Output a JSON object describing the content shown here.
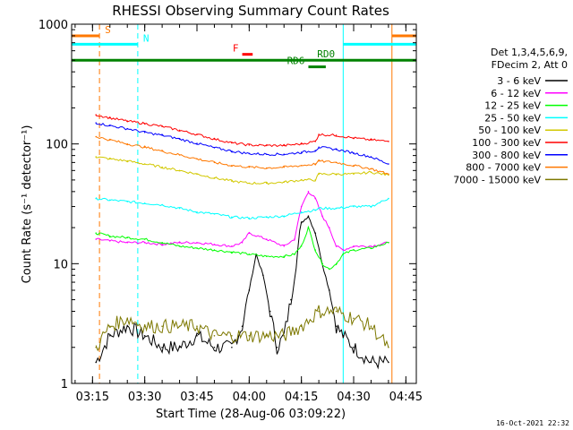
{
  "chart_data": {
    "type": "line",
    "title": "RHESSI Observing Summary Count Rates",
    "xlabel": "Start Time (28-Aug-06 03:09:22)",
    "ylabel": "Count Rate (s⁻¹ detector⁻¹)",
    "y_scale": "log",
    "ylim": [
      1,
      1000
    ],
    "xlim": [
      "03:09",
      "04:48"
    ],
    "x_ticks": [
      "03:15",
      "03:30",
      "03:45",
      "04:00",
      "04:15",
      "04:30",
      "04:45"
    ],
    "y_ticks": [
      "1",
      "10",
      "100",
      "1000"
    ],
    "legend": {
      "position": "right",
      "header": [
        "Det 1,3,4,5,6,9,",
        "FDecim 2, Att 0"
      ]
    },
    "series": [
      {
        "name": "3 - 6 keV",
        "color": "#000000",
        "x": [
          "03:16",
          "03:20",
          "03:25",
          "03:30",
          "03:35",
          "03:40",
          "03:45",
          "03:50",
          "03:55",
          "03:58",
          "04:00",
          "04:02",
          "04:04",
          "04:06",
          "04:08",
          "04:10",
          "04:12",
          "04:15",
          "04:17",
          "04:19",
          "04:21",
          "04:23",
          "04:25",
          "04:27",
          "04:30",
          "04:35",
          "04:40"
        ],
        "y": [
          1.5,
          2.5,
          3,
          2.5,
          2,
          2,
          2.5,
          2,
          2,
          3,
          6,
          12,
          8,
          4,
          2,
          2.5,
          5,
          22,
          25,
          18,
          10,
          6,
          3,
          2.5,
          2,
          1.5,
          1.5
        ]
      },
      {
        "name": "6 - 12 keV",
        "color": "#ff00ff",
        "x": [
          "03:16",
          "03:20",
          "03:25",
          "03:30",
          "03:35",
          "03:40",
          "03:45",
          "03:50",
          "03:55",
          "03:58",
          "04:00",
          "04:05",
          "04:10",
          "04:13",
          "04:15",
          "04:17",
          "04:19",
          "04:21",
          "04:23",
          "04:25",
          "04:27",
          "04:30",
          "04:35",
          "04:40"
        ],
        "y": [
          16,
          15.5,
          15,
          15,
          14.5,
          15,
          15,
          14.5,
          14,
          15,
          18,
          16,
          14,
          16,
          30,
          40,
          35,
          25,
          20,
          14,
          13,
          14,
          14,
          15
        ]
      },
      {
        "name": "12 - 25 keV",
        "color": "#00ff00",
        "x": [
          "03:16",
          "03:20",
          "03:25",
          "03:30",
          "03:35",
          "03:40",
          "03:45",
          "03:50",
          "03:55",
          "04:00",
          "04:05",
          "04:10",
          "04:13",
          "04:15",
          "04:17",
          "04:19",
          "04:21",
          "04:23",
          "04:25",
          "04:27",
          "04:30",
          "04:35",
          "04:40"
        ],
        "y": [
          18,
          17,
          16.5,
          16,
          15,
          14,
          13.5,
          13,
          12.5,
          12,
          11.5,
          11.5,
          12,
          14,
          20,
          13,
          10,
          9,
          10,
          12,
          13,
          13.5,
          15
        ]
      },
      {
        "name": "25 - 50 keV",
        "color": "#00ffff",
        "x": [
          "03:16",
          "03:20",
          "03:25",
          "03:30",
          "03:35",
          "03:40",
          "03:45",
          "03:50",
          "03:55",
          "04:00",
          "04:05",
          "04:10",
          "04:15",
          "04:19",
          "04:20",
          "04:25",
          "04:30",
          "04:35",
          "04:40"
        ],
        "y": [
          35,
          34,
          33,
          32,
          31,
          29,
          27,
          26,
          24.5,
          24,
          24.5,
          25,
          27,
          28,
          29,
          29,
          30,
          30,
          35
        ]
      },
      {
        "name": "50 - 100 keV",
        "color": "#d2c800",
        "x": [
          "03:16",
          "03:20",
          "03:25",
          "03:30",
          "03:35",
          "03:40",
          "03:45",
          "03:50",
          "03:55",
          "04:00",
          "04:05",
          "04:10",
          "04:15",
          "04:19",
          "04:20",
          "04:25",
          "04:30",
          "04:35",
          "04:40"
        ],
        "y": [
          78,
          75,
          72,
          68,
          64,
          60,
          56,
          52,
          49,
          47,
          47,
          48,
          50,
          50,
          56,
          56,
          56,
          58,
          55
        ]
      },
      {
        "name": "100 - 300 keV",
        "color": "#ff0000",
        "x": [
          "03:16",
          "03:20",
          "03:25",
          "03:30",
          "03:35",
          "03:40",
          "03:45",
          "03:50",
          "03:55",
          "04:00",
          "04:05",
          "04:10",
          "04:15",
          "04:19",
          "04:20",
          "04:25",
          "04:30",
          "04:35",
          "04:40"
        ],
        "y": [
          175,
          165,
          155,
          148,
          140,
          130,
          120,
          110,
          102,
          98,
          97,
          97,
          100,
          105,
          120,
          118,
          112,
          108,
          105
        ]
      },
      {
        "name": "300 - 800 keV",
        "color": "#0000ff",
        "x": [
          "03:16",
          "03:20",
          "03:25",
          "03:30",
          "03:35",
          "03:40",
          "03:45",
          "03:50",
          "03:55",
          "04:00",
          "04:05",
          "04:10",
          "04:15",
          "04:19",
          "04:20",
          "04:25",
          "04:30",
          "04:35",
          "04:40"
        ],
        "y": [
          150,
          142,
          134,
          125,
          118,
          110,
          101,
          93,
          87,
          83,
          82,
          82,
          85,
          88,
          94,
          90,
          84,
          78,
          68
        ]
      },
      {
        "name": "800 - 7000 keV",
        "color": "#ff7800",
        "x": [
          "03:16",
          "03:20",
          "03:25",
          "03:30",
          "03:35",
          "03:40",
          "03:45",
          "03:50",
          "03:55",
          "04:00",
          "04:05",
          "04:10",
          "04:15",
          "04:19",
          "04:20",
          "04:25",
          "04:30",
          "04:35",
          "04:40"
        ],
        "y": [
          115,
          108,
          100,
          94,
          87,
          81,
          75,
          70,
          66,
          64,
          63,
          64,
          66,
          68,
          72,
          70,
          66,
          62,
          56
        ]
      },
      {
        "name": "7000 - 15000 keV",
        "color": "#7d7800",
        "x": [
          "03:16",
          "03:20",
          "03:25",
          "03:30",
          "03:35",
          "03:40",
          "03:45",
          "03:50",
          "03:55",
          "04:00",
          "04:05",
          "04:10",
          "04:15",
          "04:20",
          "04:25",
          "04:30",
          "04:35",
          "04:40"
        ],
        "y": [
          2,
          3,
          3.5,
          3,
          3,
          3,
          3,
          2.5,
          2.5,
          2.5,
          2.5,
          2.5,
          3,
          4,
          4,
          3.5,
          3,
          2
        ]
      }
    ],
    "annotations": [
      {
        "label": "S",
        "color": "#ff7800",
        "x_start": "03:09",
        "x_end": "03:17",
        "y": 800
      },
      {
        "label": "S",
        "color": "#ff7800",
        "x_start": "04:41",
        "x_end": "04:48",
        "y": 800
      },
      {
        "label": "N",
        "color": "#00ffff",
        "x_start": "03:09",
        "x_end": "03:28",
        "y": 680
      },
      {
        "label": "N",
        "color": "#00ffff",
        "x_start": "04:27",
        "x_end": "04:48",
        "y": 680
      },
      {
        "label": "F",
        "color": "#ff0000",
        "x_start": "03:58",
        "x_end": "04:01",
        "y": 560
      },
      {
        "label": "RD0",
        "color": "#008200",
        "x_start": "03:09",
        "x_end": "04:48",
        "y": 500
      },
      {
        "label": "RD6",
        "color": "#008200",
        "x_start": "04:17",
        "x_end": "04:22",
        "y": 440
      }
    ],
    "vlines": [
      {
        "x": "03:09",
        "color": "#00ffff",
        "style": "solid"
      },
      {
        "x": "03:17",
        "color": "#ff7800",
        "style": "dashed"
      },
      {
        "x": "03:28",
        "color": "#00ffff",
        "style": "dashed"
      },
      {
        "x": "04:27",
        "color": "#00ffff",
        "style": "solid"
      },
      {
        "x": "04:41",
        "color": "#ff7800",
        "style": "solid"
      },
      {
        "x": "04:48",
        "color": "#00ffff",
        "style": "dashed"
      }
    ]
  },
  "footer": {
    "timestamp": "16-Oct-2021 22:32"
  },
  "colors": {
    "axis": "#000000",
    "background": "#ffffff"
  }
}
